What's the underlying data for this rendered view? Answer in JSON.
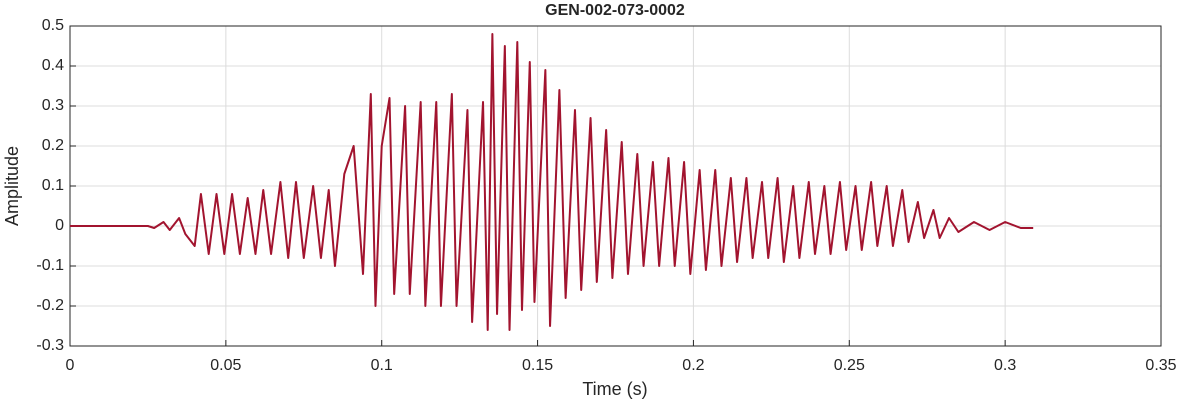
{
  "chart_data": {
    "type": "line",
    "title": "GEN-002-073-0002",
    "x_label": "Time (s)",
    "y_label": "Amplitude",
    "x": [
      0,
      0.025,
      0.027,
      0.03,
      0.032,
      0.035,
      0.037,
      0.04,
      0.042,
      0.0445,
      0.047,
      0.0495,
      0.052,
      0.0545,
      0.057,
      0.0595,
      0.062,
      0.0645,
      0.0675,
      0.07,
      0.0725,
      0.075,
      0.078,
      0.0805,
      0.083,
      0.085,
      0.088,
      0.091,
      0.094,
      0.0965,
      0.098,
      0.1,
      0.1025,
      0.104,
      0.1075,
      0.109,
      0.1125,
      0.114,
      0.1175,
      0.119,
      0.1225,
      0.124,
      0.1275,
      0.129,
      0.1325,
      0.134,
      0.1355,
      0.137,
      0.1395,
      0.141,
      0.1435,
      0.145,
      0.1475,
      0.149,
      0.1525,
      0.154,
      0.157,
      0.159,
      0.162,
      0.164,
      0.167,
      0.169,
      0.172,
      0.174,
      0.177,
      0.179,
      0.182,
      0.184,
      0.187,
      0.189,
      0.192,
      0.194,
      0.197,
      0.199,
      0.202,
      0.204,
      0.207,
      0.209,
      0.212,
      0.214,
      0.217,
      0.219,
      0.222,
      0.224,
      0.227,
      0.229,
      0.232,
      0.234,
      0.237,
      0.239,
      0.242,
      0.244,
      0.247,
      0.249,
      0.252,
      0.254,
      0.257,
      0.259,
      0.262,
      0.264,
      0.267,
      0.269,
      0.272,
      0.274,
      0.277,
      0.279,
      0.282,
      0.285,
      0.29,
      0.295,
      0.3,
      0.305,
      0.309
    ],
    "values": [
      0,
      0,
      -0.005,
      0.01,
      -0.01,
      0.02,
      -0.02,
      -0.05,
      0.08,
      -0.07,
      0.08,
      -0.07,
      0.08,
      -0.07,
      0.07,
      -0.07,
      0.09,
      -0.07,
      0.11,
      -0.08,
      0.11,
      -0.08,
      0.1,
      -0.08,
      0.09,
      -0.1,
      0.13,
      0.2,
      -0.12,
      0.33,
      -0.2,
      0.2,
      0.32,
      -0.17,
      0.3,
      -0.17,
      0.31,
      -0.2,
      0.31,
      -0.2,
      0.33,
      -0.2,
      0.29,
      -0.24,
      0.31,
      -0.26,
      0.48,
      -0.22,
      0.45,
      -0.26,
      0.46,
      -0.21,
      0.41,
      -0.19,
      0.39,
      -0.25,
      0.34,
      -0.18,
      0.29,
      -0.16,
      0.27,
      -0.14,
      0.24,
      -0.13,
      0.21,
      -0.12,
      0.18,
      -0.1,
      0.16,
      -0.1,
      0.17,
      -0.1,
      0.16,
      -0.12,
      0.14,
      -0.11,
      0.14,
      -0.1,
      0.12,
      -0.09,
      0.12,
      -0.08,
      0.11,
      -0.08,
      0.12,
      -0.09,
      0.1,
      -0.08,
      0.11,
      -0.07,
      0.1,
      -0.07,
      0.11,
      -0.06,
      0.1,
      -0.06,
      0.11,
      -0.05,
      0.1,
      -0.05,
      0.09,
      -0.04,
      0.06,
      -0.03,
      0.04,
      -0.03,
      0.02,
      -0.015,
      0.01,
      -0.01,
      0.01,
      -0.005,
      -0.005
    ],
    "color": "#a2142f",
    "xlim": [
      0,
      0.35
    ],
    "xticks": [
      0,
      0.05,
      0.1,
      0.15,
      0.2,
      0.25,
      0.3,
      0.35
    ],
    "ylim": [
      -0.3,
      0.5
    ],
    "yticks": [
      -0.3,
      -0.2,
      -0.1,
      0,
      0.1,
      0.2,
      0.3,
      0.4,
      0.5
    ],
    "grid": true
  }
}
